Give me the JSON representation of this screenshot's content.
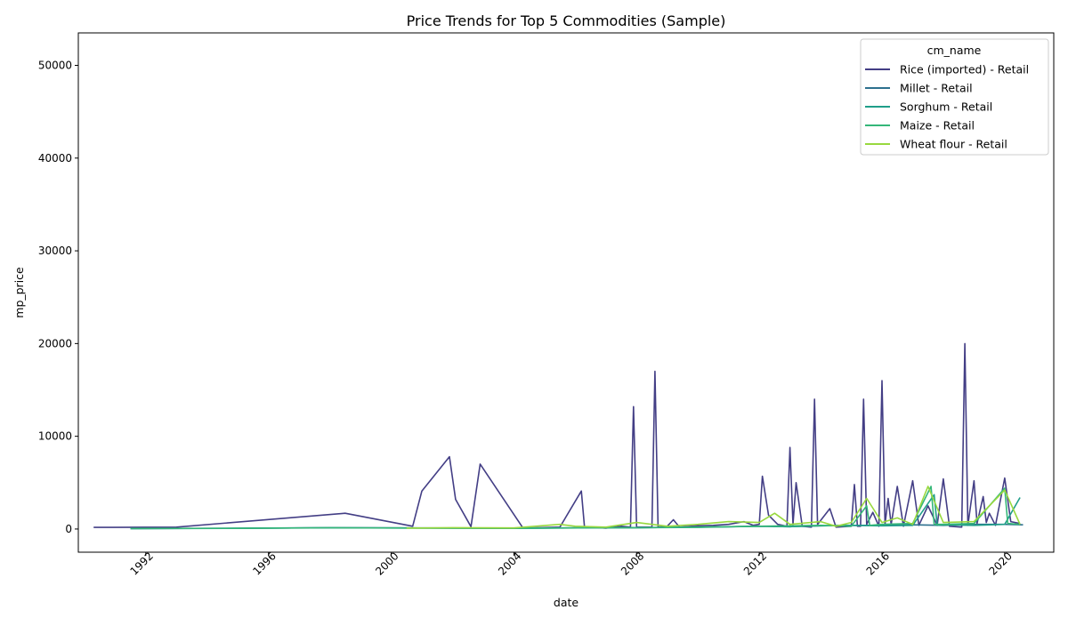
{
  "chart_data": {
    "type": "line",
    "title": "Price Trends for Top 5 Commodities (Sample)",
    "xlabel": "date",
    "ylabel": "mp_price",
    "xlim": [
      1989.8,
      2021.6
    ],
    "ylim": [
      -2500,
      53500
    ],
    "xticks": [
      1992,
      1996,
      2000,
      2004,
      2008,
      2012,
      2016,
      2020
    ],
    "yticks": [
      0,
      10000,
      20000,
      30000,
      40000,
      50000
    ],
    "legend": {
      "title": "cm_name",
      "position": "top-right"
    },
    "grid": false,
    "series": [
      {
        "name": "Rice (imported) - Retail",
        "color": "#433e85",
        "points": [
          [
            1990.3,
            180
          ],
          [
            1993.0,
            200
          ],
          [
            1998.5,
            1700
          ],
          [
            2000.7,
            300
          ],
          [
            2001.0,
            4100
          ],
          [
            2001.9,
            7800
          ],
          [
            2002.1,
            3200
          ],
          [
            2002.6,
            250
          ],
          [
            2002.9,
            7000
          ],
          [
            2004.3,
            100
          ],
          [
            2005.5,
            200
          ],
          [
            2006.2,
            4100
          ],
          [
            2006.3,
            250
          ],
          [
            2007.0,
            100
          ],
          [
            2007.5,
            300
          ],
          [
            2007.8,
            200
          ],
          [
            2007.9,
            13200
          ],
          [
            2008.0,
            200
          ],
          [
            2008.5,
            200
          ],
          [
            2008.6,
            17000
          ],
          [
            2008.7,
            200
          ],
          [
            2009.0,
            300
          ],
          [
            2009.2,
            1000
          ],
          [
            2009.4,
            200
          ],
          [
            2010.0,
            350
          ],
          [
            2010.5,
            400
          ],
          [
            2011.0,
            500
          ],
          [
            2011.5,
            800
          ],
          [
            2011.8,
            400
          ],
          [
            2012.0,
            500
          ],
          [
            2012.1,
            5700
          ],
          [
            2012.3,
            1500
          ],
          [
            2012.6,
            500
          ],
          [
            2012.9,
            300
          ],
          [
            2013.0,
            8800
          ],
          [
            2013.1,
            500
          ],
          [
            2013.2,
            5000
          ],
          [
            2013.4,
            300
          ],
          [
            2013.7,
            200
          ],
          [
            2013.8,
            14000
          ],
          [
            2013.9,
            500
          ],
          [
            2014.3,
            2200
          ],
          [
            2014.5,
            200
          ],
          [
            2015.0,
            300
          ],
          [
            2015.1,
            4800
          ],
          [
            2015.2,
            300
          ],
          [
            2015.3,
            300
          ],
          [
            2015.4,
            14000
          ],
          [
            2015.5,
            500
          ],
          [
            2015.7,
            1800
          ],
          [
            2015.9,
            300
          ],
          [
            2016.0,
            16000
          ],
          [
            2016.1,
            500
          ],
          [
            2016.2,
            3300
          ],
          [
            2016.3,
            500
          ],
          [
            2016.5,
            4600
          ],
          [
            2016.7,
            300
          ],
          [
            2017.0,
            5200
          ],
          [
            2017.2,
            400
          ],
          [
            2017.5,
            2500
          ],
          [
            2017.8,
            400
          ],
          [
            2018.0,
            5400
          ],
          [
            2018.2,
            300
          ],
          [
            2018.6,
            200
          ],
          [
            2018.7,
            20000
          ],
          [
            2018.8,
            400
          ],
          [
            2019.0,
            5200
          ],
          [
            2019.1,
            600
          ],
          [
            2019.3,
            3500
          ],
          [
            2019.4,
            700
          ],
          [
            2019.5,
            1700
          ],
          [
            2019.7,
            400
          ],
          [
            2020.0,
            5500
          ],
          [
            2020.2,
            800
          ],
          [
            2020.5,
            600
          ]
        ]
      },
      {
        "name": "Millet - Retail",
        "color": "#2d708e",
        "points": [
          [
            1991.5,
            50
          ],
          [
            1995.0,
            80
          ],
          [
            1998.0,
            150
          ],
          [
            2001.0,
            120
          ],
          [
            2004.0,
            80
          ],
          [
            2006.5,
            150
          ],
          [
            2008.0,
            150
          ],
          [
            2010.0,
            200
          ],
          [
            2012.0,
            300
          ],
          [
            2013.0,
            250
          ],
          [
            2014.0,
            350
          ],
          [
            2015.0,
            400
          ],
          [
            2016.0,
            400
          ],
          [
            2017.0,
            450
          ],
          [
            2018.0,
            400
          ],
          [
            2019.0,
            500
          ],
          [
            2020.0,
            500
          ],
          [
            2020.6,
            450
          ]
        ]
      },
      {
        "name": "Sorghum - Retail",
        "color": "#1f9e89",
        "points": [
          [
            1991.5,
            40
          ],
          [
            1995.0,
            70
          ],
          [
            1998.0,
            130
          ],
          [
            2001.0,
            100
          ],
          [
            2004.0,
            70
          ],
          [
            2006.5,
            130
          ],
          [
            2008.0,
            150
          ],
          [
            2010.0,
            180
          ],
          [
            2012.0,
            300
          ],
          [
            2013.0,
            250
          ],
          [
            2014.0,
            350
          ],
          [
            2015.0,
            400
          ],
          [
            2016.0,
            350
          ],
          [
            2017.0,
            400
          ],
          [
            2017.7,
            3700
          ],
          [
            2017.8,
            400
          ],
          [
            2018.0,
            450
          ],
          [
            2019.0,
            400
          ],
          [
            2020.0,
            500
          ],
          [
            2020.5,
            3400
          ]
        ]
      },
      {
        "name": "Maize - Retail",
        "color": "#35b779",
        "points": [
          [
            1991.5,
            60
          ],
          [
            1995.0,
            80
          ],
          [
            1998.0,
            140
          ],
          [
            2001.0,
            110
          ],
          [
            2004.0,
            80
          ],
          [
            2006.5,
            140
          ],
          [
            2008.0,
            150
          ],
          [
            2010.0,
            200
          ],
          [
            2012.0,
            300
          ],
          [
            2013.0,
            350
          ],
          [
            2014.0,
            400
          ],
          [
            2015.0,
            300
          ],
          [
            2015.5,
            2500
          ],
          [
            2015.6,
            400
          ],
          [
            2016.0,
            500
          ],
          [
            2017.0,
            600
          ],
          [
            2017.6,
            4600
          ],
          [
            2017.7,
            500
          ],
          [
            2018.0,
            500
          ],
          [
            2019.0,
            600
          ],
          [
            2020.0,
            4400
          ],
          [
            2020.1,
            600
          ],
          [
            2020.5,
            500
          ]
        ]
      },
      {
        "name": "Wheat flour - Retail",
        "color": "#98d83e",
        "points": [
          [
            2000.5,
            100
          ],
          [
            2002.0,
            150
          ],
          [
            2004.0,
            120
          ],
          [
            2005.5,
            500
          ],
          [
            2006.0,
            300
          ],
          [
            2007.0,
            200
          ],
          [
            2008.0,
            700
          ],
          [
            2009.0,
            300
          ],
          [
            2010.0,
            500
          ],
          [
            2011.0,
            800
          ],
          [
            2012.0,
            700
          ],
          [
            2012.5,
            1700
          ],
          [
            2013.0,
            500
          ],
          [
            2014.0,
            800
          ],
          [
            2014.5,
            300
          ],
          [
            2015.0,
            700
          ],
          [
            2015.5,
            3300
          ],
          [
            2016.0,
            700
          ],
          [
            2016.5,
            1200
          ],
          [
            2017.0,
            500
          ],
          [
            2017.5,
            4600
          ],
          [
            2018.0,
            700
          ],
          [
            2019.0,
            800
          ],
          [
            2020.0,
            4200
          ],
          [
            2020.5,
            500
          ]
        ]
      }
    ]
  }
}
